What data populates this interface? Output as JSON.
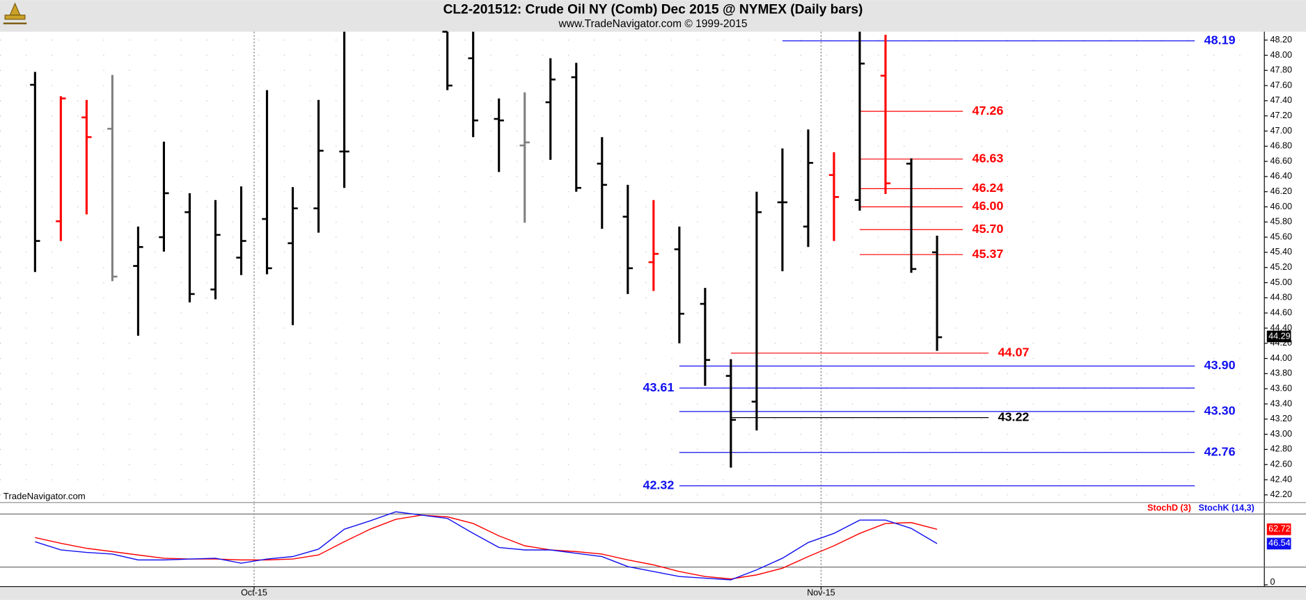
{
  "chart_data": [
    {
      "type": "ohlc",
      "title": "CL2-201512:  Crude Oil NY (Comb) Dec 2015 @ NYMEX  (Daily bars)",
      "subtitle": "www.TradeNavigator.com © 1999-2015",
      "source": "TradeNavigator.com",
      "x": [
        0,
        1,
        2,
        3,
        4,
        5,
        6,
        7,
        8,
        9,
        10,
        11,
        12,
        16,
        17,
        18,
        19,
        20,
        21,
        22,
        23,
        24,
        25,
        26,
        27,
        28,
        29,
        30,
        31,
        32,
        33,
        34,
        35
      ],
      "open": [
        47.61,
        45.81,
        47.18,
        47.03,
        45.22,
        45.6,
        45.93,
        44.91,
        45.33,
        45.84,
        45.52,
        45.98,
        46.73,
        48.31,
        47.96,
        47.16,
        46.81,
        47.38,
        47.71,
        46.57,
        45.87,
        45.27,
        45.44,
        44.72,
        43.77,
        43.43,
        46.06,
        45.74,
        46.42,
        46.09,
        47.73,
        46.57,
        45.4
      ],
      "high": [
        47.78,
        47.46,
        47.41,
        47.74,
        45.74,
        46.86,
        46.18,
        46.09,
        46.27,
        47.54,
        46.26,
        47.41,
        48.31,
        48.31,
        48.31,
        47.43,
        47.51,
        47.96,
        47.9,
        46.92,
        46.29,
        46.09,
        45.74,
        44.93,
        43.99,
        46.2,
        46.77,
        47.02,
        46.72,
        48.31,
        48.27,
        46.64,
        45.62
      ],
      "low": [
        45.14,
        45.55,
        45.9,
        45.02,
        44.3,
        45.41,
        44.74,
        44.78,
        45.1,
        45.11,
        44.44,
        45.66,
        46.25,
        47.54,
        46.92,
        46.46,
        45.79,
        46.62,
        46.2,
        45.71,
        44.85,
        44.89,
        44.2,
        43.64,
        42.56,
        43.05,
        45.15,
        45.47,
        45.55,
        45.95,
        46.17,
        45.13,
        44.1
      ],
      "close": [
        45.55,
        47.43,
        46.92,
        45.08,
        45.47,
        46.18,
        44.85,
        45.63,
        45.55,
        45.19,
        45.98,
        46.74,
        46.73,
        47.6,
        47.14,
        47.14,
        46.85,
        47.68,
        46.25,
        46.29,
        45.19,
        45.38,
        44.59,
        43.98,
        43.19,
        45.93,
        46.06,
        46.58,
        46.13,
        47.89,
        46.31,
        45.18,
        44.28
      ],
      "bar_colors": [
        "#000000",
        "#ff0000",
        "#ff0000",
        "#808080",
        "#000000",
        "#000000",
        "#000000",
        "#000000",
        "#000000",
        "#000000",
        "#000000",
        "#000000",
        "#000000",
        "#000000",
        "#000000",
        "#000000",
        "#808080",
        "#000000",
        "#000000",
        "#000000",
        "#000000",
        "#ff0000",
        "#000000",
        "#000000",
        "#000000",
        "#000000",
        "#000000",
        "#000000",
        "#ff0000",
        "#000000",
        "#ff0000",
        "#000000",
        "#000000"
      ],
      "last_value": 44.29,
      "xlim": [
        -1.36,
        47.7
      ],
      "ylim": [
        42.11,
        48.31
      ],
      "yticks": [
        {
          "value": 42.2,
          "label": "42.20"
        },
        {
          "value": 42.4,
          "label": "42.40"
        },
        {
          "value": 42.6,
          "label": "42.60"
        },
        {
          "value": 42.8,
          "label": "42.80"
        },
        {
          "value": 43,
          "label": "43.00"
        },
        {
          "value": 43.2,
          "label": "43.20"
        },
        {
          "value": 43.4,
          "label": "43.40"
        },
        {
          "value": 43.6,
          "label": "43.60"
        },
        {
          "value": 43.8,
          "label": "43.80"
        },
        {
          "value": 44,
          "label": "44.00"
        },
        {
          "value": 44.2,
          "label": "44.20"
        },
        {
          "value": 44.4,
          "label": "44.40"
        },
        {
          "value": 44.6,
          "label": "44.60"
        },
        {
          "value": 44.8,
          "label": "44.80"
        },
        {
          "value": 45,
          "label": "45.00"
        },
        {
          "value": 45.2,
          "label": "45.20"
        },
        {
          "value": 45.4,
          "label": "45.40"
        },
        {
          "value": 45.6,
          "label": "45.60"
        },
        {
          "value": 45.8,
          "label": "45.80"
        },
        {
          "value": 46,
          "label": "46.00"
        },
        {
          "value": 46.2,
          "label": "46.20"
        },
        {
          "value": 46.4,
          "label": "46.40"
        },
        {
          "value": 46.6,
          "label": "46.60"
        },
        {
          "value": 46.8,
          "label": "46.80"
        },
        {
          "value": 47,
          "label": "47.00"
        },
        {
          "value": 47.2,
          "label": "47.20"
        },
        {
          "value": 47.4,
          "label": "47.40"
        },
        {
          "value": 47.6,
          "label": "47.60"
        },
        {
          "value": 47.8,
          "label": "47.80"
        },
        {
          "value": 48,
          "label": "48.00"
        },
        {
          "value": 48.2,
          "label": "48.20"
        }
      ],
      "grid": true,
      "levels": [
        {
          "value": 48.19,
          "color": "#1010f0",
          "x": [
            29,
            45
          ],
          "label_side": "right"
        },
        {
          "value": 47.26,
          "color": "#ff0000",
          "x": [
            32,
            36
          ],
          "label_side": "right"
        },
        {
          "value": 46.63,
          "color": "#ff0000",
          "x": [
            32,
            36
          ],
          "label_side": "right"
        },
        {
          "value": 46.24,
          "color": "#ff0000",
          "x": [
            32,
            36
          ],
          "label_side": "right"
        },
        {
          "value": 46,
          "label": "46.00",
          "color": "#ff0000",
          "x": [
            32,
            36
          ],
          "label_side": "right"
        },
        {
          "value": 45.7,
          "label": "45.70",
          "color": "#ff0000",
          "x": [
            32,
            36
          ],
          "label_side": "right"
        },
        {
          "value": 45.37,
          "color": "#ff0000",
          "x": [
            32,
            36
          ],
          "label_side": "right"
        },
        {
          "value": 44.07,
          "color": "#ff0000",
          "x": [
            27,
            37
          ],
          "label_side": "right"
        },
        {
          "value": 43.9,
          "label": "43.90",
          "color": "#1010f0",
          "x": [
            25,
            45
          ],
          "label_side": "right"
        },
        {
          "value": 43.61,
          "color": "#1010f0",
          "x": [
            25,
            45
          ],
          "label_side": "left"
        },
        {
          "value": 43.3,
          "label": "43.30",
          "color": "#1010f0",
          "x": [
            25,
            45
          ],
          "label_side": "right"
        },
        {
          "value": 43.22,
          "color": "#000000",
          "x": [
            27,
            37
          ],
          "label_side": "right"
        },
        {
          "value": 42.76,
          "color": "#1010f0",
          "x": [
            25,
            45
          ],
          "label_side": "right"
        },
        {
          "value": 42.32,
          "color": "#1010f0",
          "x": [
            25,
            45
          ],
          "label_side": "left"
        }
      ]
    },
    {
      "type": "line",
      "x": [
        0,
        1,
        2,
        3,
        4,
        5,
        6,
        7,
        8,
        9,
        10,
        11,
        12,
        13,
        14,
        15,
        16,
        17,
        18,
        19,
        20,
        21,
        22,
        23,
        24,
        25,
        26,
        27,
        28,
        29,
        30,
        31,
        32,
        33,
        34,
        35
      ],
      "series": [
        {
          "name": "StochD (3)",
          "color": "#ff0000",
          "values": [
            53.4,
            46.9,
            41.2,
            37.5,
            33.7,
            30.0,
            29.1,
            29.1,
            28.1,
            28.1,
            29.1,
            33.7,
            48.7,
            62.8,
            74.0,
            78.7,
            76.8,
            69.3,
            55.3,
            44.1,
            39.4,
            37.5,
            34.7,
            28.1,
            22.5,
            15.0,
            9.4,
            6.6,
            11.2,
            18.7,
            31.9,
            44.1,
            58.1,
            69.3,
            70.3,
            62.72
          ]
        },
        {
          "name": "StochK (14,3)",
          "color": "#1010f0",
          "values": [
            48.7,
            39.4,
            36.6,
            34.7,
            28.1,
            28.1,
            29.1,
            30.0,
            24.4,
            29.1,
            31.9,
            40.3,
            62.8,
            72.2,
            82.5,
            78.7,
            75.0,
            58.1,
            42.2,
            39.4,
            39.4,
            35.6,
            31.9,
            20.6,
            15.0,
            9.4,
            7.5,
            5.6,
            16.9,
            30.0,
            47.8,
            58.1,
            73.1,
            73.1,
            63.7,
            46.54
          ]
        }
      ],
      "xlim": [
        -1.36,
        47.7
      ],
      "ylim": [
        -2,
        92
      ],
      "yticks": [
        0
      ],
      "ref_lines": [
        20,
        80
      ],
      "xticks": [
        {
          "value": 8.5,
          "label": "Oct-15"
        },
        {
          "value": 30.5,
          "label": "Nov-15"
        }
      ]
    }
  ]
}
